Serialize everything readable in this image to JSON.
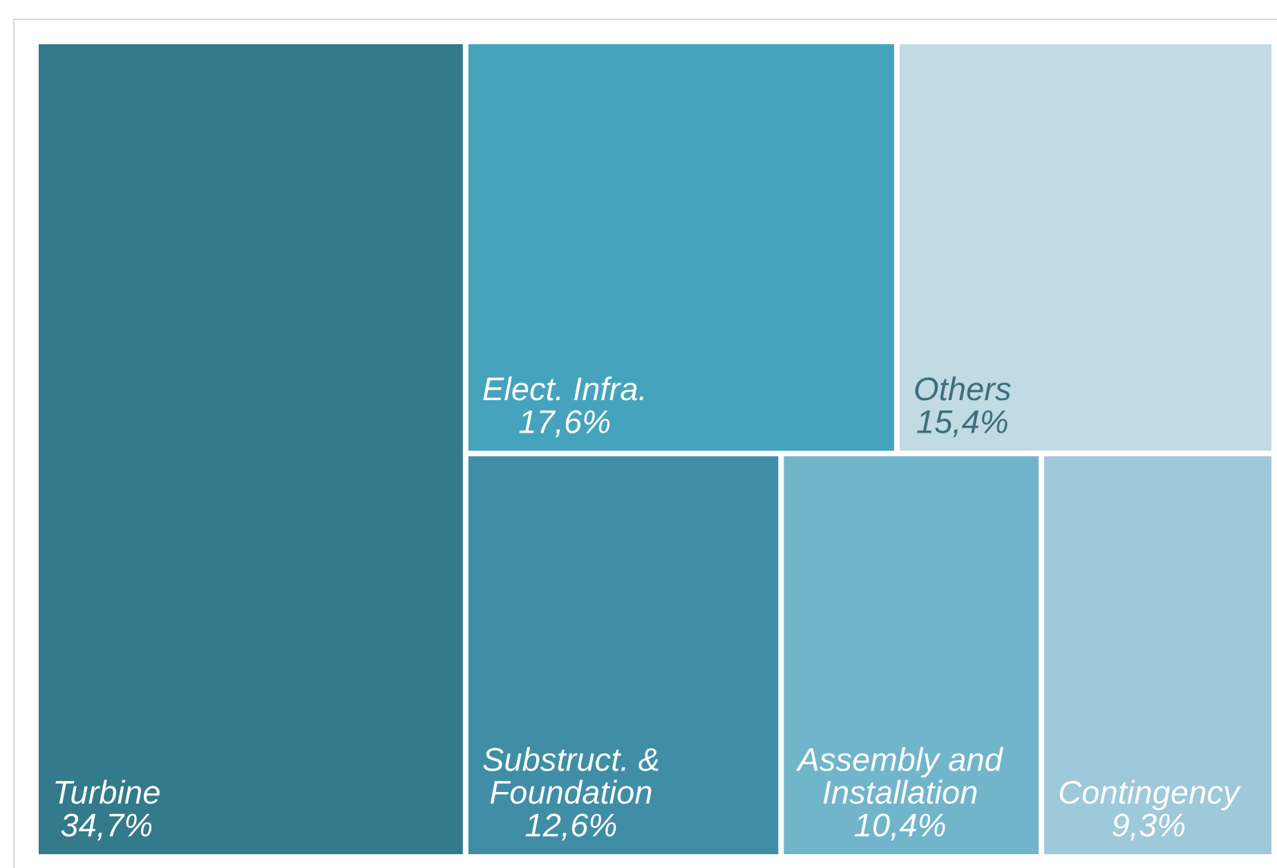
{
  "chart_data": {
    "type": "other",
    "categories": [
      "Turbine",
      "Elect. Infra.",
      "Others",
      "Substruct. &\nFoundation",
      "Assembly and\nInstallation",
      "Contingency"
    ],
    "values": [
      34.7,
      17.6,
      15.4,
      12.6,
      10.4,
      9.3
    ],
    "value_labels": [
      "34,7%",
      "17,6%",
      "15,4%",
      "12,6%",
      "10,4%",
      "9,3%"
    ],
    "colors": [
      "#337a8a",
      "#46a3bd",
      "#c1dae3",
      "#3f8ea6",
      "#71b5cb",
      "#9dc9da"
    ]
  }
}
